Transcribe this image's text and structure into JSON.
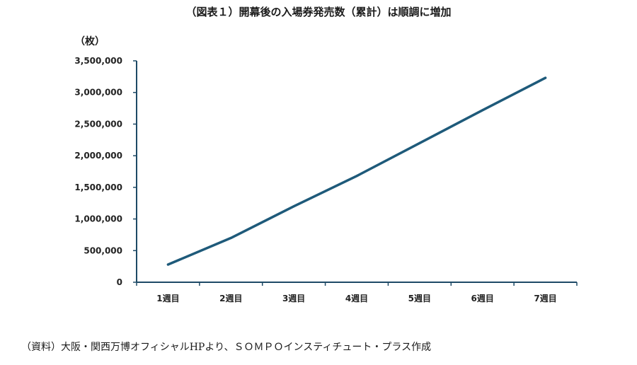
{
  "chart_data": {
    "type": "line",
    "title": "（図表１）開幕後の入場券発売数（累計）は順調に増加",
    "ylabel": "（枚）",
    "xlabel": "",
    "categories": [
      "1週目",
      "2週目",
      "3週目",
      "4週目",
      "5週目",
      "6週目",
      "7週目"
    ],
    "series": [
      {
        "values": [
          280000,
          700000,
          1200000,
          1680000,
          2200000,
          2720000,
          3230000
        ]
      }
    ],
    "ylim": [
      0,
      3500000
    ],
    "yticks": [
      0,
      500000,
      1000000,
      1500000,
      2000000,
      2500000,
      3000000,
      3500000
    ],
    "ytick_labels": [
      "0",
      "500,000",
      "1,000,000",
      "1,500,000",
      "2,000,000",
      "2,500,000",
      "3,000,000",
      "3,500,000"
    ],
    "grid": false,
    "line_color": "#1e5a7a",
    "axis_color": "#1e4a66"
  },
  "source_note": "（資料）大阪・関西万博オフィシャルHPより、ＳＯＭＰＯインスティチュート・プラス作成"
}
